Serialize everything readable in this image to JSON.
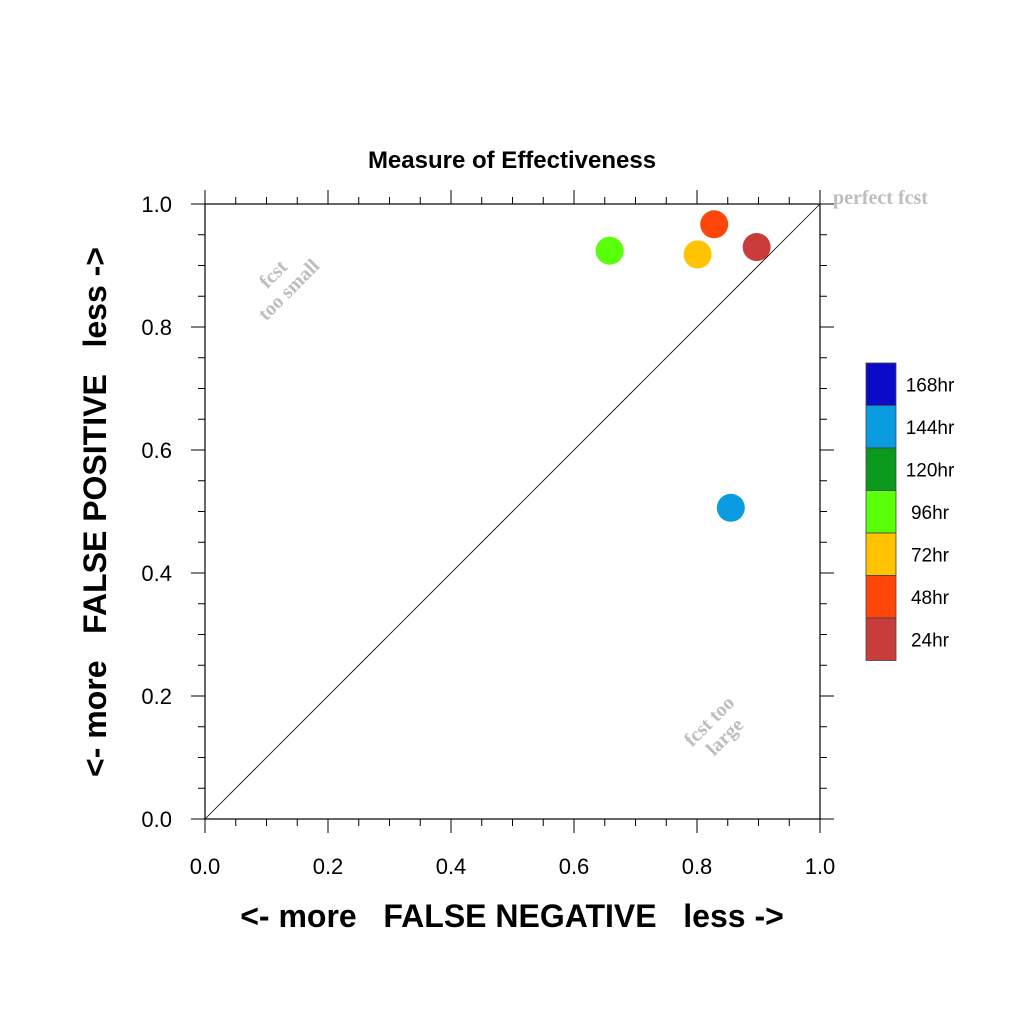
{
  "chart_data": {
    "type": "scatter",
    "title": "Measure of Effectiveness",
    "xlabel": "<- more   FALSE NEGATIVE   less ->",
    "ylabel": "<- more   FALSE POSITIVE   less ->",
    "xlim": [
      0.0,
      1.0
    ],
    "ylim": [
      0.0,
      1.0
    ],
    "xticks": [
      "0.0",
      "0.2",
      "0.4",
      "0.6",
      "0.8",
      "1.0"
    ],
    "yticks": [
      "0.0",
      "0.2",
      "0.4",
      "0.6",
      "0.8",
      "1.0"
    ],
    "grid": false,
    "reference_line": {
      "from": [
        0.0,
        0.0
      ],
      "to": [
        1.0,
        1.0
      ]
    },
    "annotations": {
      "perfect": "perfect fcst",
      "too_small_1": "fcst",
      "too_small_2": "too small",
      "too_large_1": "fcst too",
      "too_large_2": "large"
    },
    "legend_position": "right",
    "legend": [
      {
        "label": "168hr",
        "color": "#0a0ac8"
      },
      {
        "label": "144hr",
        "color": "#0a9be1"
      },
      {
        "label": "120hr",
        "color": "#0a9b1e"
      },
      {
        "label": "96hr",
        "color": "#5aff0a"
      },
      {
        "label": "72hr",
        "color": "#ffc300"
      },
      {
        "label": "48hr",
        "color": "#ff460a"
      },
      {
        "label": "24hr",
        "color": "#c83c3c"
      }
    ],
    "series": [
      {
        "name": "24hr",
        "x": 0.897,
        "y": 0.93,
        "color": "#c83c3c"
      },
      {
        "name": "48hr",
        "x": 0.828,
        "y": 0.967,
        "color": "#ff460a"
      },
      {
        "name": "72hr",
        "x": 0.801,
        "y": 0.918,
        "color": "#ffc300"
      },
      {
        "name": "96hr",
        "x": 0.658,
        "y": 0.924,
        "color": "#5aff0a"
      },
      {
        "name": "144hr",
        "x": 0.855,
        "y": 0.506,
        "color": "#0a9be1"
      }
    ]
  }
}
